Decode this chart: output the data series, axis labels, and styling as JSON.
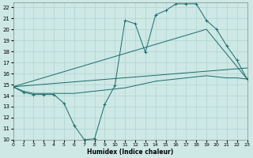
{
  "xlabel": "Humidex (Indice chaleur)",
  "xlim": [
    0,
    23
  ],
  "ylim": [
    10,
    22.4
  ],
  "xticks": [
    0,
    1,
    2,
    3,
    4,
    5,
    6,
    7,
    8,
    9,
    10,
    11,
    12,
    13,
    14,
    15,
    16,
    17,
    18,
    19,
    20,
    21,
    22,
    23
  ],
  "yticks": [
    10,
    11,
    12,
    13,
    14,
    15,
    16,
    17,
    18,
    19,
    20,
    21,
    22
  ],
  "bg_color": "#cde8e5",
  "line_color": "#1a6b6b",
  "grid_color": "#afd4d0",
  "s1_x": [
    0,
    1,
    2,
    3,
    4,
    5,
    6,
    7,
    8,
    9,
    10,
    11,
    12,
    13,
    14,
    15,
    16,
    17,
    18,
    19,
    20,
    21,
    22,
    23
  ],
  "s1_y": [
    14.8,
    14.3,
    14.1,
    14.1,
    14.1,
    13.3,
    11.3,
    10.0,
    10.1,
    13.2,
    14.9,
    20.8,
    20.5,
    17.9,
    21.3,
    21.7,
    22.3,
    22.3,
    22.3,
    20.8,
    20.0,
    18.5,
    17.2,
    15.5
  ],
  "s2_x": [
    0,
    1,
    2,
    3,
    4,
    5,
    6,
    7,
    8,
    9,
    10,
    11,
    12,
    13,
    14,
    15,
    16,
    17,
    18,
    19,
    20,
    21,
    22,
    23
  ],
  "s2_y": [
    14.8,
    14.4,
    14.2,
    14.2,
    14.2,
    14.2,
    14.2,
    14.3,
    14.4,
    14.5,
    14.6,
    14.7,
    14.9,
    15.1,
    15.3,
    15.4,
    15.5,
    15.6,
    15.7,
    15.8,
    15.7,
    15.6,
    15.6,
    15.5
  ],
  "trend1_x": [
    0,
    23
  ],
  "trend1_y": [
    14.8,
    16.5
  ],
  "trend2_x": [
    0,
    19,
    23
  ],
  "trend2_y": [
    14.8,
    20.0,
    15.5
  ]
}
